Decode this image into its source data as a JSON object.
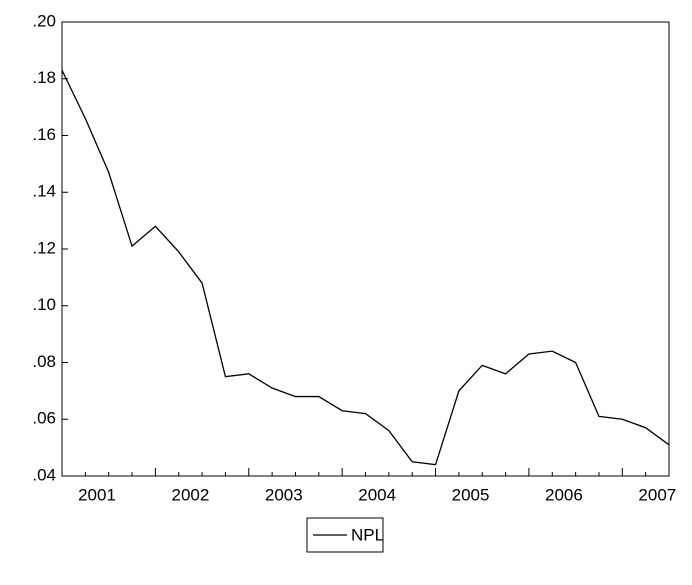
{
  "chart_data": {
    "type": "line",
    "categories": [
      null,
      "2001",
      null,
      null,
      null,
      "2002",
      null,
      null,
      null,
      "2003",
      null,
      null,
      null,
      "2004",
      null,
      null,
      null,
      "2005",
      null,
      null,
      null,
      "2006",
      null,
      null,
      null,
      "2007",
      null
    ],
    "series": [
      {
        "name": "NPL",
        "color": "#000000",
        "values": [
          0.183,
          0.166,
          0.147,
          0.121,
          0.128,
          0.119,
          0.108,
          0.075,
          0.076,
          0.071,
          0.068,
          0.068,
          0.063,
          0.062,
          0.056,
          0.045,
          0.044,
          0.07,
          0.079,
          0.076,
          0.083,
          0.084,
          0.08,
          0.061,
          0.06,
          0.057,
          0.051
        ]
      }
    ],
    "ylim": [
      0.04,
      0.2
    ],
    "yticks": [
      {
        "value": 0.04,
        "label": ".04"
      },
      {
        "value": 0.06,
        "label": ".06"
      },
      {
        "value": 0.08,
        "label": ".08"
      },
      {
        "value": 0.1,
        "label": ".10"
      },
      {
        "value": 0.12,
        "label": ".12"
      },
      {
        "value": 0.14,
        "label": ".14"
      },
      {
        "value": 0.16,
        "label": ".16"
      },
      {
        "value": 0.18,
        "label": ".18"
      },
      {
        "value": 0.2,
        "label": ".20"
      }
    ],
    "legend": "bottom"
  }
}
